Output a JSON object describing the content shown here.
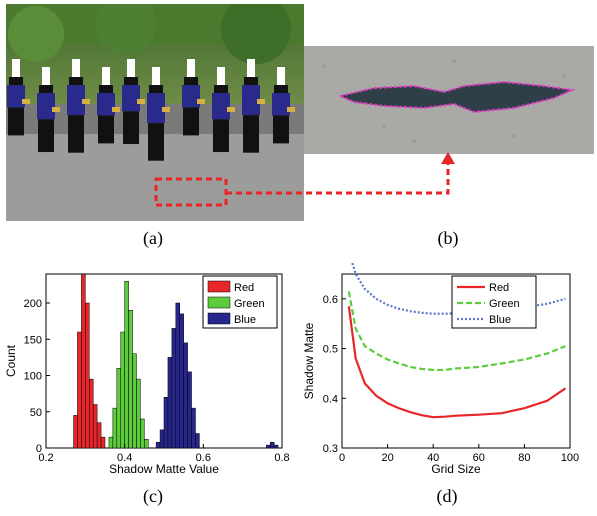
{
  "captions": {
    "a": "(a)",
    "b": "(b)",
    "c": "(c)",
    "d": "(d)"
  },
  "photo_a": {
    "scene": "marching band on asphalt street",
    "highlight_color": "#e8262a"
  },
  "photo_b": {
    "scene": "zoomed shadow on asphalt with magenta outline",
    "outline_color": "#e838c8"
  },
  "chart_data": [
    {
      "type": "histogram",
      "xlabel": "Shadow Matte Value",
      "ylabel": "Count",
      "xlim": [
        0.2,
        0.8
      ],
      "ylim": [
        0,
        240
      ],
      "xticks": [
        "0.2",
        "0.4",
        "0.6",
        "0.8"
      ],
      "yticks": [
        "0",
        "50",
        "100",
        "150",
        "200"
      ],
      "legend_position": "top-right",
      "bin_width": 0.01,
      "series": [
        {
          "name": "Red",
          "color": "#e8262a",
          "bins": [
            0.27,
            0.28,
            0.29,
            0.3,
            0.31,
            0.32,
            0.33,
            0.34
          ],
          "values": [
            45,
            160,
            240,
            200,
            95,
            60,
            35,
            15
          ]
        },
        {
          "name": "Green",
          "color": "#5ccc3c",
          "bins": [
            0.36,
            0.37,
            0.38,
            0.39,
            0.4,
            0.41,
            0.42,
            0.43,
            0.44,
            0.45
          ],
          "values": [
            15,
            55,
            110,
            160,
            230,
            190,
            130,
            95,
            40,
            12
          ]
        },
        {
          "name": "Blue",
          "color": "#26268c",
          "bins": [
            0.48,
            0.49,
            0.5,
            0.51,
            0.52,
            0.53,
            0.54,
            0.55,
            0.56,
            0.57,
            0.58,
            0.76,
            0.77,
            0.78
          ],
          "values": [
            8,
            25,
            70,
            125,
            165,
            200,
            185,
            145,
            105,
            55,
            20,
            4,
            8,
            4
          ]
        }
      ]
    },
    {
      "type": "line",
      "xlabel": "Grid Size",
      "ylabel": "Shadow Matte",
      "xlim": [
        0,
        100
      ],
      "ylim": [
        0.3,
        0.65
      ],
      "xticks": [
        "0",
        "20",
        "40",
        "60",
        "80",
        "100"
      ],
      "yticks": [
        "0.3",
        "0.4",
        "0.5",
        "0.6"
      ],
      "legend_position": "top-center",
      "x": [
        3,
        6,
        10,
        15,
        20,
        25,
        30,
        35,
        40,
        45,
        50,
        60,
        70,
        80,
        90,
        98
      ],
      "series": [
        {
          "name": "Red",
          "color": "#e8262a",
          "style": "solid",
          "values": [
            0.585,
            0.48,
            0.43,
            0.405,
            0.39,
            0.38,
            0.372,
            0.366,
            0.362,
            0.363,
            0.365,
            0.367,
            0.37,
            0.38,
            0.395,
            0.42
          ]
        },
        {
          "name": "Green",
          "color": "#5ccc3c",
          "style": "dashed",
          "values": [
            0.615,
            0.54,
            0.505,
            0.49,
            0.478,
            0.47,
            0.463,
            0.459,
            0.457,
            0.457,
            0.46,
            0.463,
            0.47,
            0.478,
            0.49,
            0.505
          ]
        },
        {
          "name": "Blue",
          "color": "#5a78cc",
          "style": "dotted",
          "values": [
            0.695,
            0.65,
            0.62,
            0.6,
            0.588,
            0.58,
            0.575,
            0.572,
            0.57,
            0.57,
            0.571,
            0.574,
            0.578,
            0.583,
            0.59,
            0.6
          ]
        }
      ]
    }
  ]
}
